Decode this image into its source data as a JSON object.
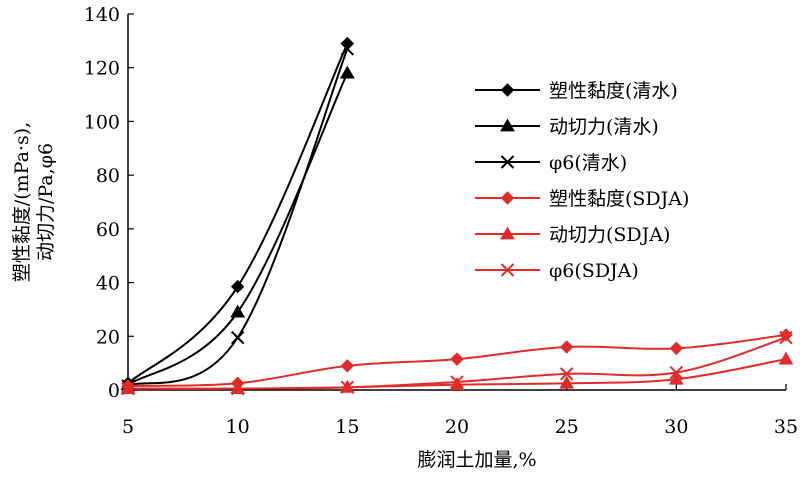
{
  "chart_data": {
    "type": "line",
    "title": "",
    "xlabel": "膨润土加量,%",
    "ylabel_line1": "塑性黏度/(mPa·s),",
    "ylabel_line2": "动切力/Pa,φ6",
    "x": [
      5,
      10,
      15,
      20,
      25,
      30,
      35
    ],
    "xlim": [
      5,
      35
    ],
    "ylim": [
      0,
      140
    ],
    "xticks": [
      "5",
      "10",
      "15",
      "20",
      "25",
      "30",
      "35"
    ],
    "yticks": [
      "0",
      "20",
      "40",
      "60",
      "80",
      "100",
      "120",
      "140"
    ],
    "grid": false,
    "legend_position": "right",
    "series": [
      {
        "name": "塑性黏度(清水)",
        "color": "#000000",
        "marker": "diamond",
        "x": [
          5,
          10,
          15
        ],
        "values": [
          2.5,
          38.5,
          129
        ]
      },
      {
        "name": "动切力(清水)",
        "color": "#000000",
        "marker": "triangle",
        "x": [
          5,
          10,
          15
        ],
        "values": [
          2.0,
          29,
          118
        ]
      },
      {
        "name": "φ6(清水)",
        "color": "#000000",
        "marker": "x",
        "x": [
          5,
          10,
          15
        ],
        "values": [
          1.5,
          19.5,
          127
        ]
      },
      {
        "name": "塑性黏度(SDJA)",
        "color": "#e12b2b",
        "marker": "diamond",
        "x": [
          5,
          10,
          15,
          20,
          25,
          30,
          35
        ],
        "values": [
          1.5,
          2.5,
          9,
          11.5,
          16,
          15.5,
          20.5
        ]
      },
      {
        "name": "动切力(SDJA)",
        "color": "#e12b2b",
        "marker": "triangle",
        "x": [
          5,
          10,
          15,
          20,
          25,
          30,
          35
        ],
        "values": [
          0.5,
          0.5,
          1.0,
          2.0,
          2.5,
          4.0,
          11.5
        ]
      },
      {
        "name": "φ6(SDJA)",
        "color": "#e12b2b",
        "marker": "x",
        "x": [
          5,
          10,
          15,
          20,
          25,
          30,
          35
        ],
        "values": [
          0.5,
          0.5,
          1.0,
          3.0,
          6.0,
          6.5,
          19.5
        ]
      }
    ]
  }
}
